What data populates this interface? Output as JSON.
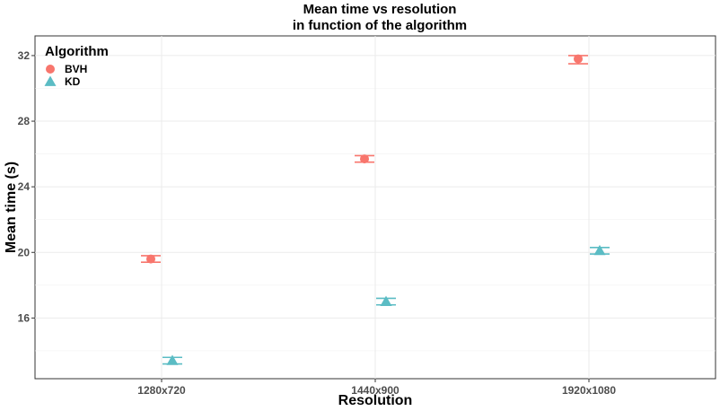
{
  "chart_data": {
    "type": "scatter",
    "title_line1": "Mean time vs resolution",
    "title_line2": "in function of the algorithm",
    "xlabel": "Resolution",
    "ylabel": "Mean time (s)",
    "categories": [
      "1280x720",
      "1440x900",
      "1920x1080"
    ],
    "yticks": [
      "16",
      "20",
      "24",
      "28",
      "32"
    ],
    "ylim": [
      12.3,
      33.2
    ],
    "grid": true,
    "legend": {
      "title": "Algorithm",
      "position": "top-left"
    },
    "series": [
      {
        "name": "BVH",
        "color": "#F8766D",
        "marker": "circle",
        "values": [
          19.6,
          25.7,
          31.8
        ],
        "err_low": [
          19.4,
          25.5,
          31.5
        ],
        "err_high": [
          19.8,
          25.9,
          32.0
        ]
      },
      {
        "name": "KD",
        "color": "#5BBCC4",
        "marker": "triangle",
        "values": [
          13.4,
          17.0,
          20.1
        ],
        "err_low": [
          13.2,
          16.8,
          19.9
        ],
        "err_high": [
          13.6,
          17.2,
          20.3
        ]
      }
    ]
  }
}
